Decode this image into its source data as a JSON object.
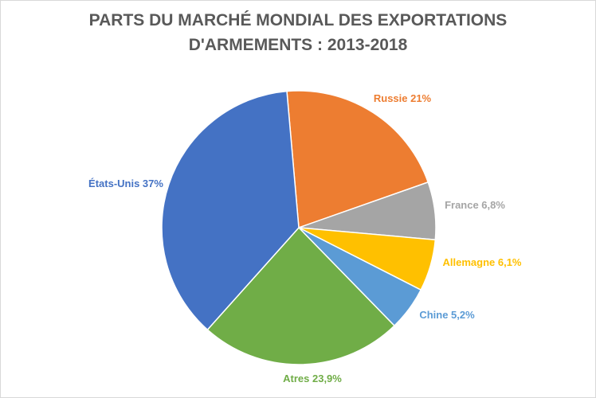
{
  "chart_data": {
    "type": "pie",
    "title_lines": [
      "PARTS DU MARCHÉ MONDIAL DES EXPORTATIONS",
      "D'ARMEMENTS : 2013-2018"
    ],
    "slices": [
      {
        "name": "Russie",
        "value": 21,
        "label": "Russie 21%",
        "color": "#ED7D31"
      },
      {
        "name": "France",
        "value": 6.8,
        "label": "France 6,8%",
        "color": "#A5A5A5"
      },
      {
        "name": "Allemagne",
        "value": 6.1,
        "label": "Allemagne 6,1%",
        "color": "#FFC000"
      },
      {
        "name": "Chine",
        "value": 5.2,
        "label": "Chine 5,2%",
        "color": "#5B9BD5"
      },
      {
        "name": "Atres",
        "value": 23.9,
        "label": "Atres 23,9%",
        "color": "#70AD47"
      },
      {
        "name": "États-Unis",
        "value": 37,
        "label": "États-Unis 37%",
        "color": "#4472C4"
      }
    ],
    "start_angle_deg": -5
  }
}
